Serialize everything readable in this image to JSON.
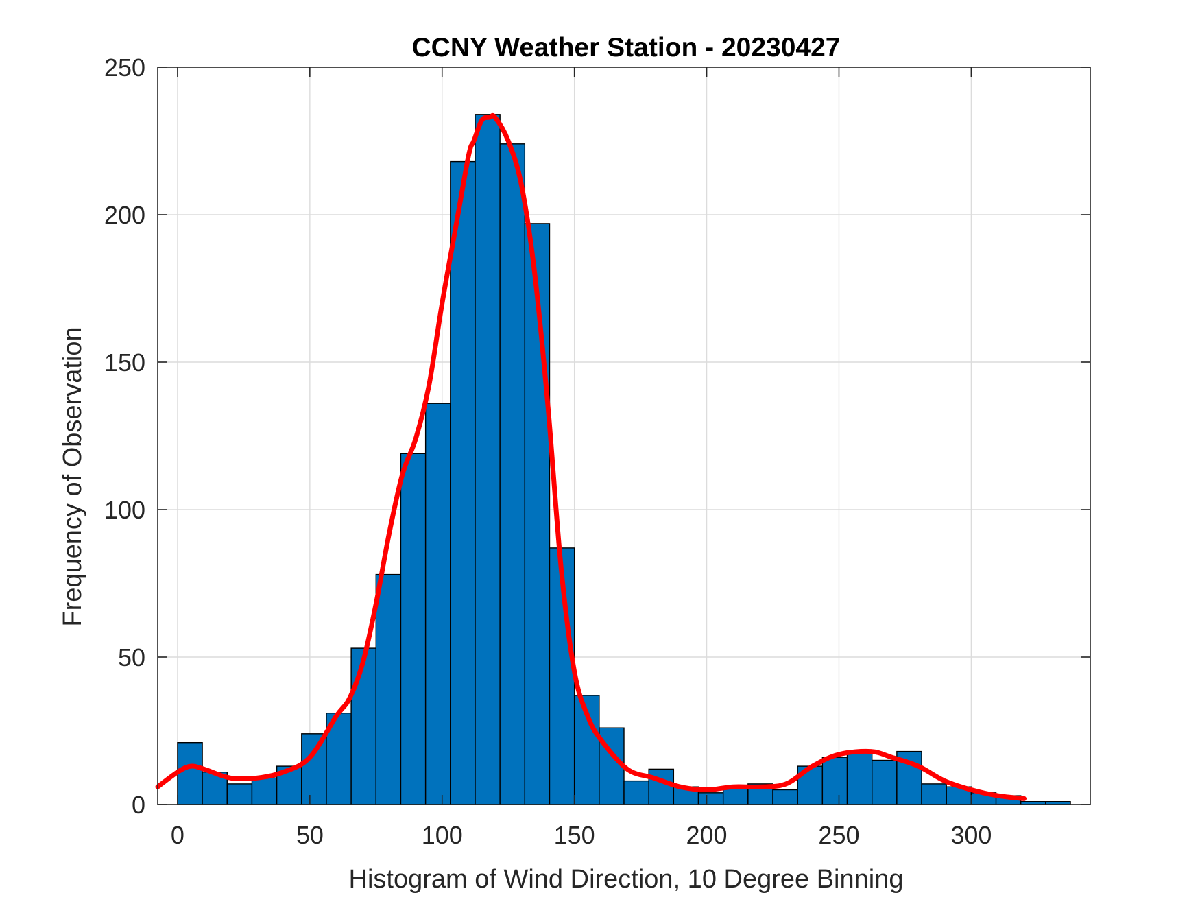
{
  "chart_data": {
    "type": "bar",
    "subtype": "histogram",
    "title": "CCNY Weather Station - 20230427",
    "xlabel": "Histogram of Wind Direction, 10 Degree Binning",
    "ylabel": "Frequency of Observation",
    "xlim": [
      -7.5,
      345
    ],
    "ylim": [
      0,
      250
    ],
    "x_ticks": [
      0,
      50,
      100,
      150,
      200,
      250,
      300
    ],
    "y_ticks": [
      0,
      50,
      100,
      150,
      200,
      250
    ],
    "x_tick_labels": [
      "0",
      "50",
      "100",
      "150",
      "200",
      "250",
      "300"
    ],
    "y_tick_labels": [
      "0",
      "50",
      "100",
      "150",
      "200",
      "250"
    ],
    "grid": true,
    "bin_width": 9.375,
    "bin_edges": [
      0,
      9.375,
      18.75,
      28.125,
      37.5,
      46.875,
      56.25,
      65.625,
      75,
      84.375,
      93.75,
      103.125,
      112.5,
      121.875,
      131.25,
      140.625,
      150,
      159.375,
      168.75,
      178.125,
      187.5,
      196.875,
      206.25,
      215.625,
      225,
      234.375,
      243.75,
      253.125,
      262.5,
      271.875,
      281.25,
      290.625,
      300,
      309.375,
      318.75,
      328.125,
      337.5
    ],
    "counts": [
      21,
      11,
      7,
      9,
      13,
      24,
      31,
      53,
      78,
      119,
      136,
      218,
      234,
      224,
      197,
      87,
      37,
      26,
      8,
      12,
      6,
      4,
      6,
      7,
      5,
      13,
      16,
      18,
      15,
      18,
      7,
      6,
      4,
      3,
      1,
      1
    ],
    "bar_color": "#0072BD",
    "bar_edge_color": "#000000",
    "curve": {
      "color": "#FF0000",
      "x": [
        -7.5,
        0,
        5,
        10,
        20,
        30,
        40,
        50,
        60,
        65,
        70,
        75,
        80,
        85,
        90,
        95,
        100,
        105,
        110,
        112,
        115,
        118,
        120,
        125,
        130,
        135,
        140,
        145,
        150,
        155,
        160,
        170,
        180,
        190,
        200,
        210,
        220,
        230,
        240,
        250,
        262,
        270,
        280,
        290,
        300,
        310,
        320
      ],
      "y": [
        6,
        11,
        13,
        12,
        9,
        9,
        11,
        16,
        30,
        36,
        48,
        68,
        92,
        112,
        124,
        142,
        170,
        195,
        220,
        225,
        232,
        233,
        233,
        225,
        210,
        180,
        135,
        80,
        45,
        30,
        22,
        12,
        9,
        6,
        5,
        6,
        6,
        7,
        13,
        17,
        18,
        16,
        13,
        8,
        5,
        3,
        2
      ]
    }
  }
}
